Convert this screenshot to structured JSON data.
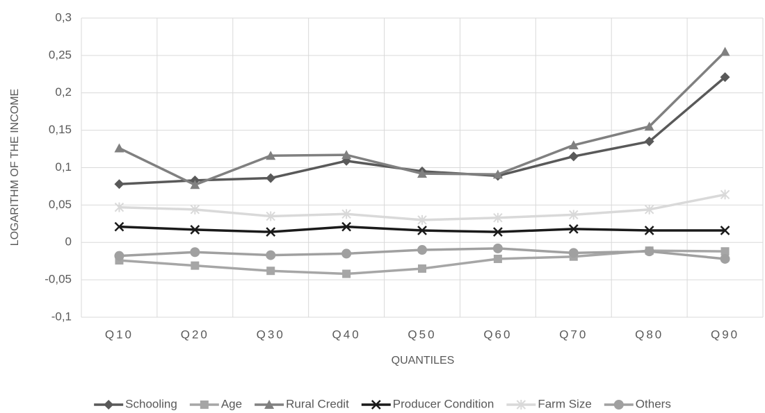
{
  "chart_data": {
    "type": "line",
    "y_label": "LOGARITHM OF THE INCOME",
    "x_label": "QUANTILES",
    "categories": [
      "Q10",
      "Q20",
      "Q30",
      "Q40",
      "Q50",
      "Q60",
      "Q70",
      "Q80",
      "Q90"
    ],
    "series": [
      {
        "name": "Schooling",
        "color": "#595959",
        "marker": "diamond",
        "values": [
          0.078,
          0.083,
          0.086,
          0.109,
          0.095,
          0.089,
          0.115,
          0.135,
          0.221
        ]
      },
      {
        "name": "Age",
        "color": "#a6a6a6",
        "marker": "square",
        "values": [
          -0.024,
          -0.031,
          -0.038,
          -0.042,
          -0.035,
          -0.022,
          -0.019,
          -0.011,
          -0.012
        ]
      },
      {
        "name": "Rural Credit",
        "color": "#808080",
        "marker": "triangle",
        "values": [
          0.126,
          0.077,
          0.116,
          0.117,
          0.092,
          0.091,
          0.13,
          0.155,
          0.255
        ]
      },
      {
        "name": "Producer Condition",
        "color": "#1a1a1a",
        "marker": "x",
        "values": [
          0.021,
          0.017,
          0.014,
          0.021,
          0.016,
          0.014,
          0.018,
          0.016,
          0.016
        ]
      },
      {
        "name": "Farm Size",
        "color": "#d9d9d9",
        "marker": "star",
        "values": [
          0.047,
          0.044,
          0.035,
          0.038,
          0.03,
          0.033,
          0.037,
          0.044,
          0.064
        ]
      },
      {
        "name": "Others",
        "color": "#a0a0a0",
        "marker": "circle",
        "values": [
          -0.018,
          -0.013,
          -0.017,
          -0.015,
          -0.01,
          -0.008,
          -0.014,
          -0.012,
          -0.022
        ]
      }
    ],
    "ylim": [
      -0.1,
      0.3
    ],
    "yticks": [
      {
        "value": -0.1,
        "label": "-0,1"
      },
      {
        "value": -0.05,
        "label": "-0,05"
      },
      0,
      {
        "value": 0.05,
        "label": "0,05"
      },
      {
        "value": 0.1,
        "label": "0,1"
      },
      {
        "value": 0.15,
        "label": "0,15"
      },
      {
        "value": 0.2,
        "label": "0,2"
      },
      {
        "value": 0.25,
        "label": "0,25"
      },
      {
        "value": 0.3,
        "label": "0,3"
      }
    ],
    "grid": true,
    "legend": "bottom"
  }
}
